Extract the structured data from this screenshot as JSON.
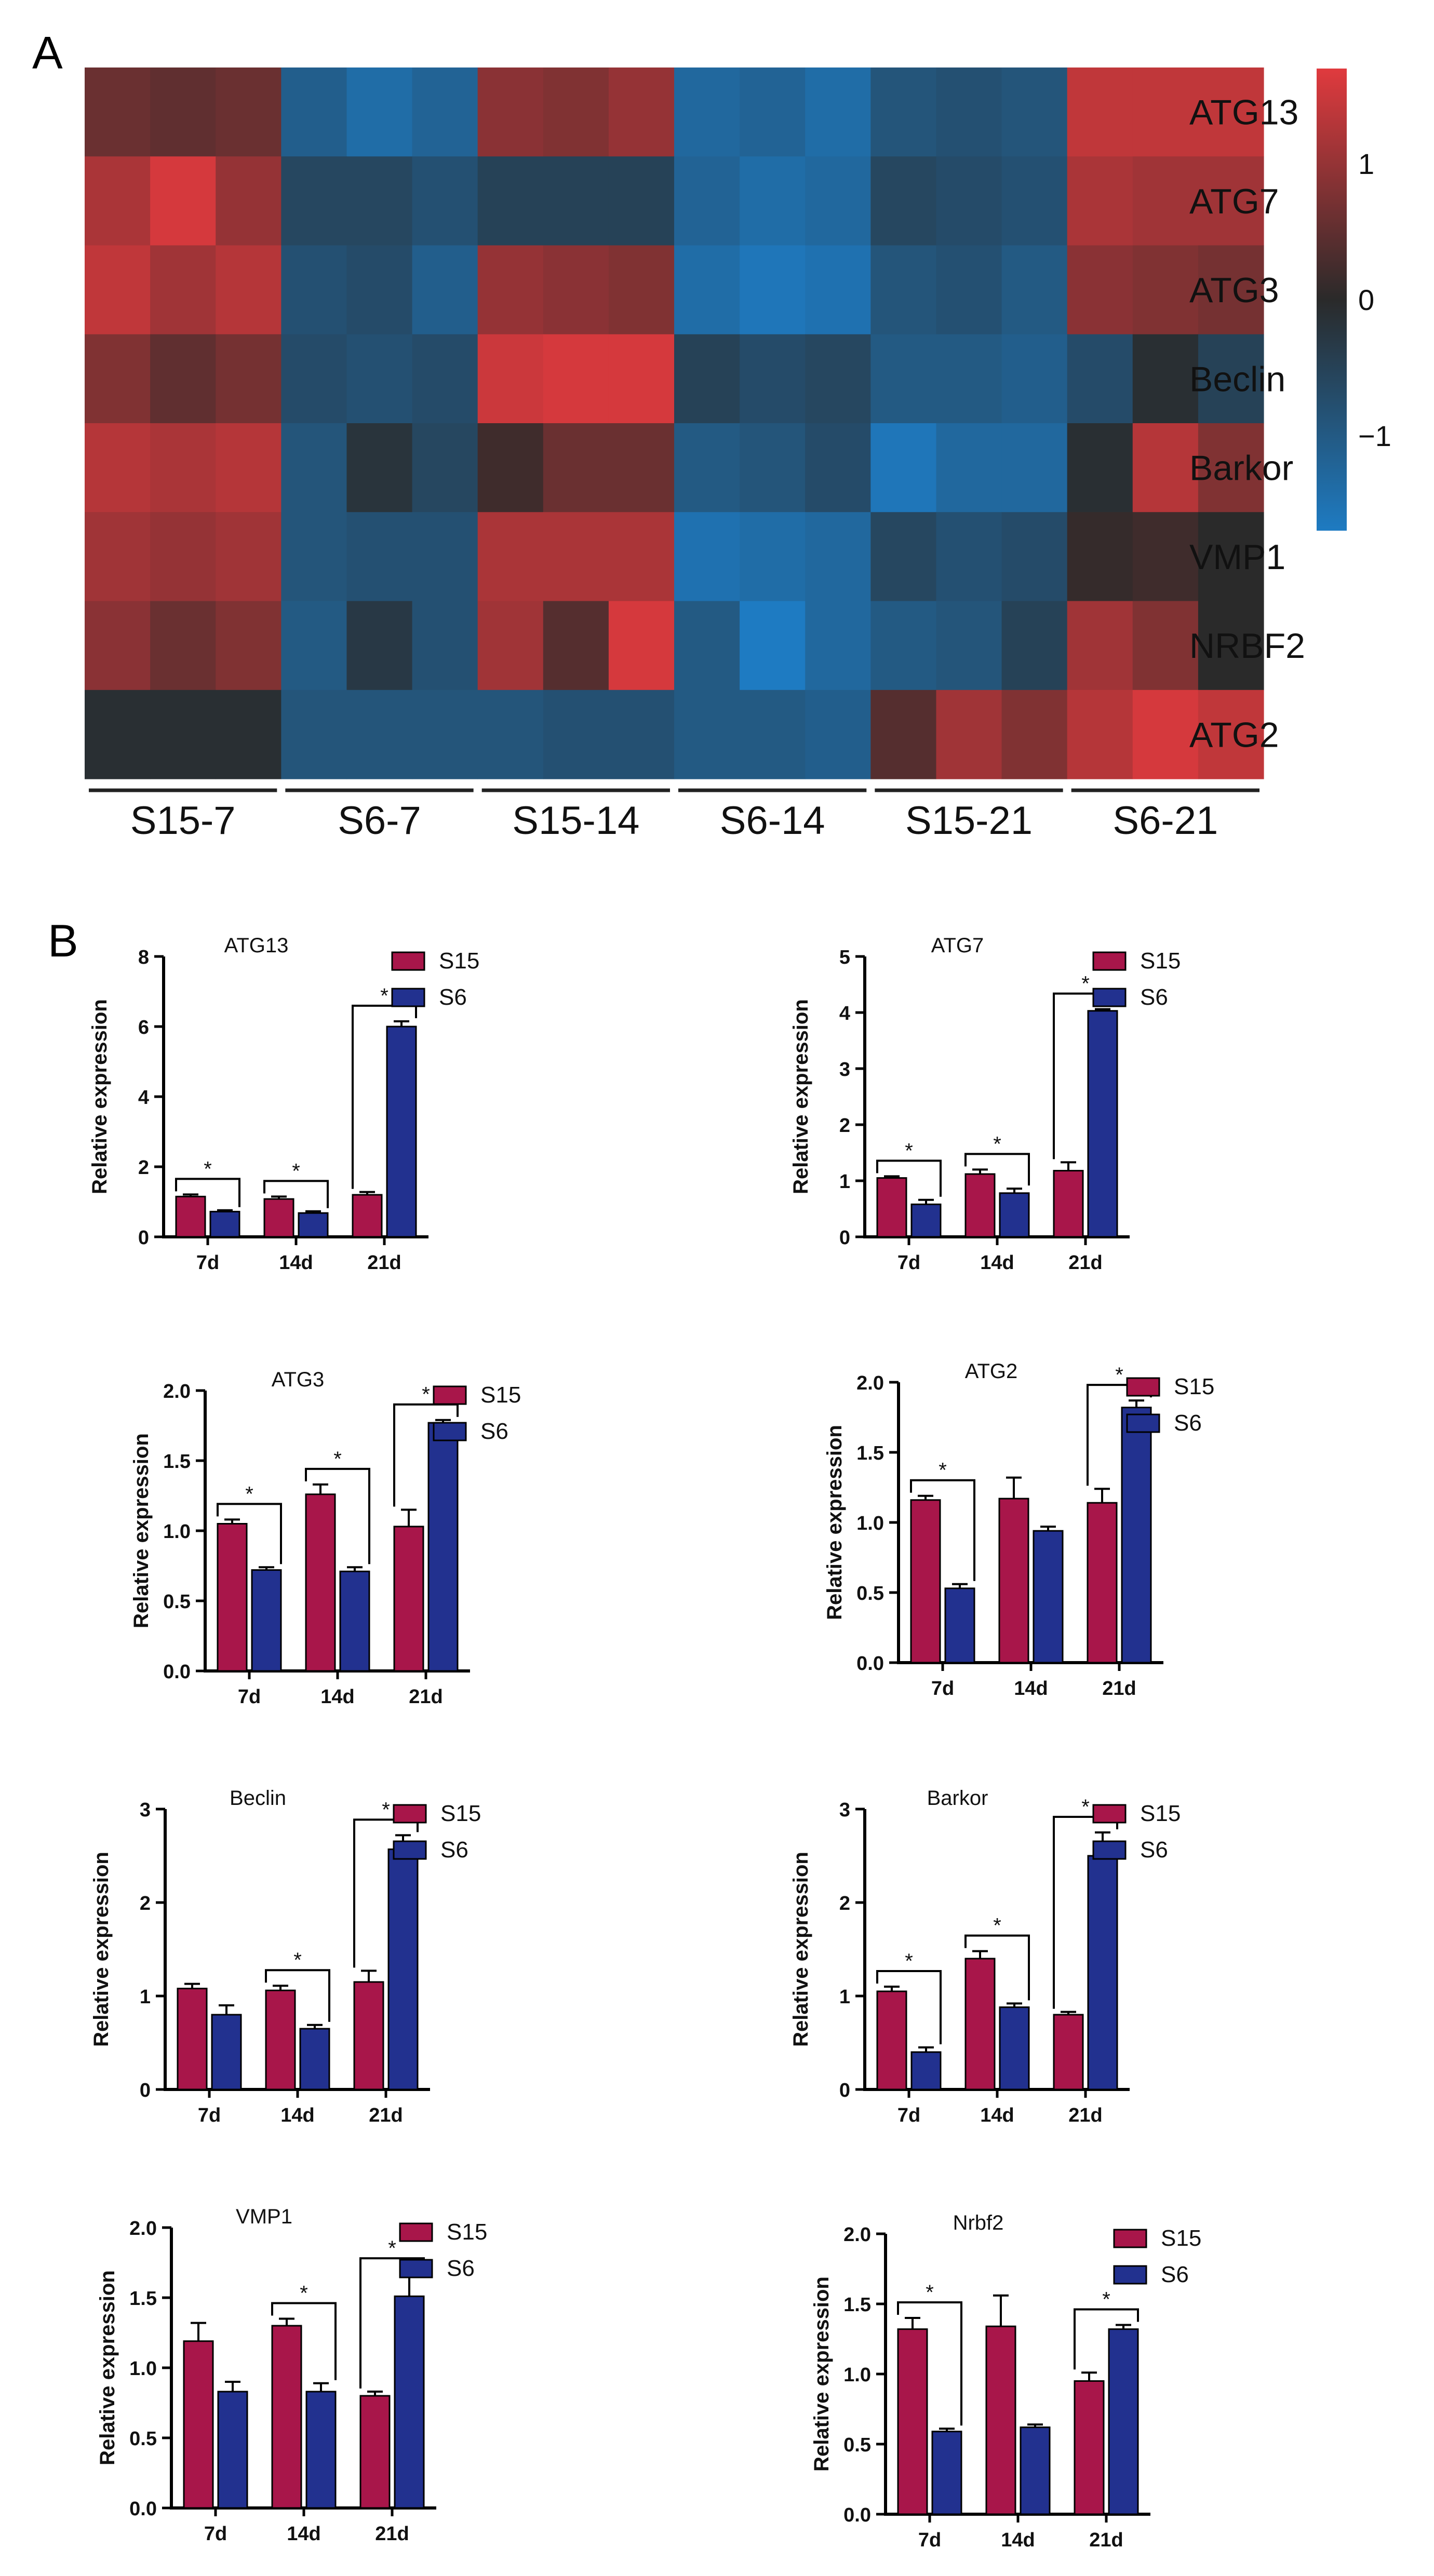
{
  "panels": {
    "a": "A",
    "b": "B"
  },
  "chart_data": [
    {
      "type": "heatmap",
      "panel": "A",
      "rows": [
        "ATG13",
        "ATG7",
        "ATG3",
        "Beclin",
        "Barkor",
        "VMP1",
        "NRBF2",
        "ATG2"
      ],
      "groups": [
        "S15-7",
        "S6-7",
        "S15-14",
        "S6-14",
        "S15-21",
        "S6-21"
      ],
      "columns_per_group": 3,
      "colorbar": {
        "min": -1.7,
        "max": 1.7,
        "ticks": [
          1,
          0,
          -1
        ],
        "tick_labels": [
          "1",
          "0",
          "−1"
        ],
        "low_color": "#1e7bc2",
        "mid_color": "#2a2a2a",
        "high_color": "#e03a3e"
      },
      "values": [
        [
          0.6,
          0.5,
          0.6,
          -1.1,
          -1.4,
          -1.2,
          0.9,
          0.8,
          1.0,
          -1.3,
          -1.2,
          -1.4,
          -0.9,
          -0.8,
          -0.9,
          1.4,
          1.4,
          1.4
        ],
        [
          1.2,
          1.6,
          1.0,
          -0.6,
          -0.6,
          -0.8,
          -0.5,
          -0.5,
          -0.5,
          -1.2,
          -1.4,
          -1.3,
          -0.6,
          -0.7,
          -0.8,
          1.2,
          1.1,
          1.1
        ],
        [
          1.4,
          1.1,
          1.3,
          -0.8,
          -0.7,
          -1.1,
          1.0,
          0.9,
          0.8,
          -1.4,
          -1.6,
          -1.5,
          -0.9,
          -0.8,
          -1.0,
          0.9,
          0.8,
          0.7
        ],
        [
          0.8,
          0.5,
          0.7,
          -0.7,
          -0.8,
          -0.7,
          1.5,
          1.6,
          1.6,
          -0.5,
          -0.7,
          -0.6,
          -1.0,
          -1.0,
          -1.1,
          -0.7,
          -0.1,
          -0.5
        ],
        [
          1.3,
          1.2,
          1.3,
          -0.9,
          -0.2,
          -0.6,
          0.2,
          0.6,
          0.6,
          -1.0,
          -0.9,
          -0.7,
          -1.6,
          -1.3,
          -1.3,
          -0.1,
          1.3,
          0.8
        ],
        [
          1.1,
          1.0,
          1.1,
          -0.9,
          -0.8,
          -0.8,
          1.2,
          1.2,
          1.2,
          -1.5,
          -1.4,
          -1.3,
          -0.6,
          -0.8,
          -0.7,
          0.1,
          0.2,
          0.0
        ],
        [
          0.9,
          0.6,
          0.8,
          -1.0,
          -0.3,
          -0.8,
          1.1,
          0.4,
          1.6,
          -1.0,
          -1.7,
          -1.3,
          -1.0,
          -0.9,
          -0.5,
          1.1,
          0.8,
          0.0
        ],
        [
          -0.1,
          -0.1,
          -0.1,
          -0.9,
          -0.9,
          -0.9,
          -0.9,
          -0.8,
          -0.8,
          -1.0,
          -1.0,
          -1.1,
          0.4,
          1.1,
          0.8,
          1.3,
          1.6,
          1.4
        ]
      ]
    },
    {
      "type": "bar",
      "title": "ATG13",
      "categories": [
        "7d",
        "14d",
        "21d"
      ],
      "ylabel": "Relative expression",
      "ylim": [
        0,
        8
      ],
      "yticks": [
        0,
        2,
        4,
        6,
        8
      ],
      "series": [
        {
          "name": "S15",
          "color": "#a8164a",
          "values": [
            1.15,
            1.08,
            1.2
          ],
          "errors": [
            0.06,
            0.07,
            0.08
          ]
        },
        {
          "name": "S6",
          "color": "#22318f",
          "values": [
            0.72,
            0.68,
            6.0
          ],
          "errors": [
            0.04,
            0.05,
            0.15
          ]
        }
      ],
      "significance": [
        "*",
        "*",
        "*"
      ]
    },
    {
      "type": "bar",
      "title": "ATG7",
      "categories": [
        "7d",
        "14d",
        "21d"
      ],
      "ylabel": "Relative expression",
      "ylim": [
        0,
        5
      ],
      "yticks": [
        0,
        1,
        2,
        3,
        4,
        5
      ],
      "series": [
        {
          "name": "S15",
          "color": "#a8164a",
          "values": [
            1.05,
            1.12,
            1.18
          ],
          "errors": [
            0.03,
            0.08,
            0.15
          ]
        },
        {
          "name": "S6",
          "color": "#22318f",
          "values": [
            0.58,
            0.78,
            4.03
          ],
          "errors": [
            0.08,
            0.08,
            0.03
          ]
        }
      ],
      "significance": [
        "*",
        "*",
        "*"
      ]
    },
    {
      "type": "bar",
      "title": "ATG3",
      "categories": [
        "7d",
        "14d",
        "21d"
      ],
      "ylabel": "Relative expression",
      "ylim": [
        0,
        2.0
      ],
      "yticks": [
        "0.0",
        "0.5",
        "1.0",
        "1.5",
        "2.0"
      ],
      "series": [
        {
          "name": "S15",
          "color": "#a8164a",
          "values": [
            1.05,
            1.26,
            1.03
          ],
          "errors": [
            0.03,
            0.07,
            0.12
          ]
        },
        {
          "name": "S6",
          "color": "#22318f",
          "values": [
            0.72,
            0.71,
            1.77
          ],
          "errors": [
            0.02,
            0.03,
            0.02
          ]
        }
      ],
      "significance": [
        "*",
        "*",
        "*"
      ]
    },
    {
      "type": "bar",
      "title": "ATG2",
      "categories": [
        "7d",
        "14d",
        "21d"
      ],
      "ylabel": "Relative expression",
      "ylim": [
        0,
        2.0
      ],
      "yticks": [
        "0.0",
        "0.5",
        "1.0",
        "1.5",
        "2.0"
      ],
      "series": [
        {
          "name": "S15",
          "color": "#a8164a",
          "values": [
            1.16,
            1.17,
            1.14
          ],
          "errors": [
            0.03,
            0.15,
            0.1
          ]
        },
        {
          "name": "S6",
          "color": "#22318f",
          "values": [
            0.53,
            0.94,
            1.82
          ],
          "errors": [
            0.03,
            0.03,
            0.05
          ]
        }
      ],
      "significance": [
        "*",
        "",
        "*"
      ]
    },
    {
      "type": "bar",
      "title": "Beclin",
      "categories": [
        "7d",
        "14d",
        "21d"
      ],
      "ylabel": "Relative expression",
      "ylim": [
        0,
        3
      ],
      "yticks": [
        0,
        1,
        2,
        3
      ],
      "series": [
        {
          "name": "S15",
          "color": "#a8164a",
          "values": [
            1.08,
            1.06,
            1.15
          ],
          "errors": [
            0.05,
            0.05,
            0.12
          ]
        },
        {
          "name": "S6",
          "color": "#22318f",
          "values": [
            0.8,
            0.65,
            2.57
          ],
          "errors": [
            0.1,
            0.04,
            0.15
          ]
        }
      ],
      "significance": [
        "",
        "*",
        "*"
      ]
    },
    {
      "type": "bar",
      "title": "Barkor",
      "categories": [
        "7d",
        "14d",
        "21d"
      ],
      "ylabel": "Relative expression",
      "ylim": [
        0,
        3
      ],
      "yticks": [
        0,
        1,
        2,
        3
      ],
      "series": [
        {
          "name": "S15",
          "color": "#a8164a",
          "values": [
            1.05,
            1.4,
            0.8
          ],
          "errors": [
            0.05,
            0.08,
            0.03
          ]
        },
        {
          "name": "S6",
          "color": "#22318f",
          "values": [
            0.4,
            0.88,
            2.5
          ],
          "errors": [
            0.05,
            0.04,
            0.25
          ]
        }
      ],
      "significance": [
        "*",
        "*",
        "*"
      ]
    },
    {
      "type": "bar",
      "title": "VMP1",
      "categories": [
        "7d",
        "14d",
        "21d"
      ],
      "ylabel": "Relative expression",
      "ylim": [
        0,
        2.0
      ],
      "yticks": [
        "0.0",
        "0.5",
        "1.0",
        "1.5",
        "2.0"
      ],
      "series": [
        {
          "name": "S15",
          "color": "#a8164a",
          "values": [
            1.19,
            1.3,
            0.8
          ],
          "errors": [
            0.13,
            0.05,
            0.03
          ]
        },
        {
          "name": "S6",
          "color": "#22318f",
          "values": [
            0.83,
            0.83,
            1.51
          ],
          "errors": [
            0.07,
            0.06,
            0.16
          ]
        }
      ],
      "significance": [
        "",
        "*",
        "*"
      ]
    },
    {
      "type": "bar",
      "title": "Nrbf2",
      "categories": [
        "7d",
        "14d",
        "21d"
      ],
      "ylabel": "Relative expression",
      "ylim": [
        0,
        2.0
      ],
      "yticks": [
        "0.0",
        "0.5",
        "1.0",
        "1.5",
        "2.0"
      ],
      "series": [
        {
          "name": "S15",
          "color": "#a8164a",
          "values": [
            1.32,
            1.34,
            0.95
          ],
          "errors": [
            0.08,
            0.22,
            0.06
          ]
        },
        {
          "name": "S6",
          "color": "#22318f",
          "values": [
            0.59,
            0.62,
            1.32
          ],
          "errors": [
            0.02,
            0.02,
            0.03
          ]
        }
      ],
      "significance": [
        "*",
        "",
        "*"
      ]
    }
  ]
}
